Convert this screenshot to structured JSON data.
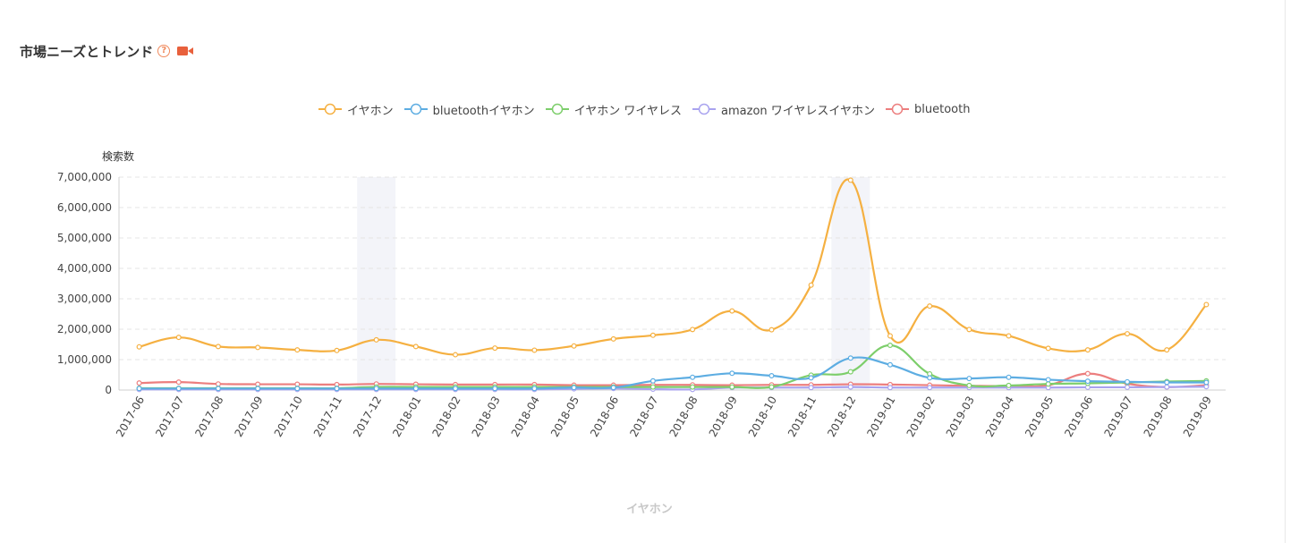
{
  "header": {
    "title": "市場ニーズとトレンド",
    "help_icon": "?"
  },
  "icons": {
    "help": "question-circle-icon",
    "video": "video-camera-icon"
  },
  "chart_data": {
    "type": "line",
    "ylabel": "検索数",
    "caption": "イヤホン",
    "ylim": [
      0,
      7000000
    ],
    "yticks": [
      0,
      1000000,
      2000000,
      3000000,
      4000000,
      5000000,
      6000000,
      7000000
    ],
    "ytick_labels": [
      "0",
      "1,000,000",
      "2,000,000",
      "3,000,000",
      "4,000,000",
      "5,000,000",
      "6,000,000",
      "7,000,000"
    ],
    "grid": true,
    "legend_position": "top-center",
    "smooth": true,
    "highlighted_categories": [
      "2017-12",
      "2018-12"
    ],
    "categories": [
      "2017-06",
      "2017-07",
      "2017-08",
      "2017-09",
      "2017-10",
      "2017-11",
      "2017-12",
      "2018-01",
      "2018-02",
      "2018-03",
      "2018-04",
      "2018-05",
      "2018-06",
      "2018-07",
      "2018-08",
      "2018-09",
      "2018-10",
      "2018-11",
      "2018-12",
      "2019-01",
      "2019-02",
      "2019-03",
      "2019-04",
      "2019-05",
      "2019-06",
      "2019-07",
      "2019-08",
      "2019-09"
    ],
    "series": [
      {
        "name": "イヤホン",
        "color": "#f5b041",
        "values": [
          1420000,
          1730000,
          1430000,
          1400000,
          1320000,
          1300000,
          1650000,
          1430000,
          1160000,
          1380000,
          1310000,
          1450000,
          1680000,
          1800000,
          1990000,
          2600000,
          1980000,
          3450000,
          6900000,
          1780000,
          2760000,
          1990000,
          1780000,
          1370000,
          1320000,
          1850000,
          1320000,
          2810000
        ]
      },
      {
        "name": "bluetoothイヤホン",
        "color": "#5dade2",
        "values": [
          50000,
          50000,
          50000,
          50000,
          50000,
          50000,
          50000,
          50000,
          50000,
          50000,
          50000,
          80000,
          80000,
          300000,
          420000,
          550000,
          470000,
          400000,
          1050000,
          830000,
          400000,
          380000,
          420000,
          340000,
          290000,
          270000,
          250000,
          250000
        ]
      },
      {
        "name": "イヤホン ワイヤレス",
        "color": "#7dce6b",
        "values": [
          60000,
          60000,
          60000,
          60000,
          60000,
          60000,
          100000,
          100000,
          100000,
          100000,
          100000,
          100000,
          100000,
          100000,
          100000,
          100000,
          100000,
          490000,
          600000,
          1470000,
          530000,
          150000,
          150000,
          200000,
          220000,
          250000,
          280000,
          300000
        ]
      },
      {
        "name": "amazon ワイヤレスイヤホン",
        "color": "#a9a3ef",
        "values": [
          20000,
          20000,
          20000,
          20000,
          20000,
          20000,
          20000,
          20000,
          20000,
          20000,
          20000,
          40000,
          50000,
          30000,
          20000,
          80000,
          80000,
          80000,
          100000,
          80000,
          80000,
          80000,
          80000,
          80000,
          90000,
          90000,
          100000,
          110000
        ]
      },
      {
        "name": "bluetooth",
        "color": "#ec7e7e",
        "values": [
          230000,
          260000,
          200000,
          190000,
          190000,
          180000,
          200000,
          190000,
          180000,
          180000,
          180000,
          160000,
          160000,
          170000,
          170000,
          160000,
          170000,
          170000,
          190000,
          180000,
          160000,
          140000,
          130000,
          160000,
          540000,
          210000,
          100000,
          160000
        ]
      }
    ]
  }
}
